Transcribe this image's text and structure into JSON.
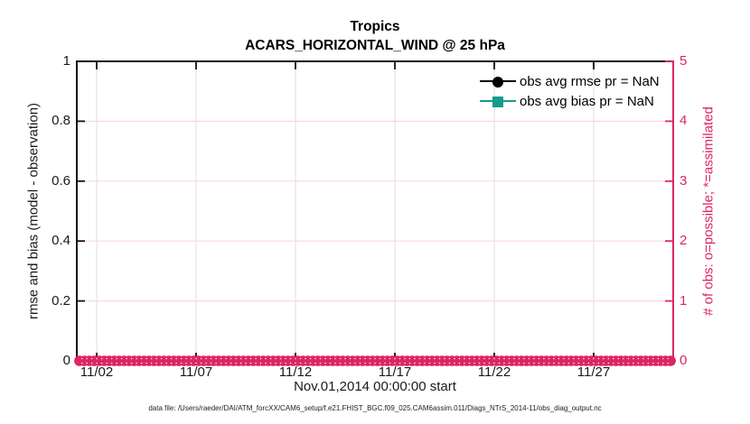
{
  "title": {
    "line1": "Tropics",
    "line2": "ACARS_HORIZONTAL_WIND @ 25 hPa"
  },
  "legend": [
    {
      "label": "obs avg rmse pr = NaN",
      "marker": "circle",
      "color": "#000000"
    },
    {
      "label": "obs avg bias pr = NaN",
      "marker": "square",
      "color": "#159a8c"
    }
  ],
  "axes": {
    "left": {
      "label": "rmse and bias (model - observation)",
      "ticks": [
        0,
        0.2,
        0.4,
        0.6,
        0.8,
        1
      ],
      "range": [
        0,
        1
      ],
      "color": "#1a1a1a"
    },
    "right": {
      "label": "# of obs: o=possible; *=assimilated",
      "ticks": [
        0,
        1,
        2,
        3,
        4,
        5
      ],
      "range": [
        0,
        5
      ],
      "color": "#de2464"
    },
    "x": {
      "label": "Nov.01,2014 00:00:00 start",
      "tick_labels": [
        "11/02",
        "11/07",
        "11/12",
        "11/17",
        "11/22",
        "11/27"
      ],
      "tick_days": [
        1,
        6,
        11,
        16,
        21,
        26
      ],
      "range_days": [
        0,
        30
      ]
    }
  },
  "footer": {
    "data_file": "data file: /Users/raeder/DAI/ATM_forcXX/CAM6_setup/f.e21.FHIST_BGC.f09_025.CAM6assim.011/Diags_NTrS_2014-11/obs_diag_output.nc"
  },
  "chart_data": {
    "type": "line",
    "title": "Tropics",
    "subtitle": "ACARS_HORIZONTAL_WIND @ 25 hPa",
    "xlabel": "Nov.01,2014 00:00:00 start",
    "x_tick_labels": [
      "11/02",
      "11/07",
      "11/12",
      "11/17",
      "11/22",
      "11/27"
    ],
    "x_range": [
      "2014-11-01 00:00",
      "2014-12-01 00:00"
    ],
    "y_left": {
      "label": "rmse and bias (model - observation)",
      "lim": [
        0,
        1
      ],
      "ticks": [
        0,
        0.2,
        0.4,
        0.6,
        0.8,
        1
      ]
    },
    "y_right": {
      "label": "# of obs: o=possible; *=assimilated",
      "lim": [
        0,
        5
      ],
      "ticks": [
        0,
        1,
        2,
        3,
        4,
        5
      ]
    },
    "grid": true,
    "legend_position": "upper right",
    "series": [
      {
        "name": "obs avg rmse pr = NaN",
        "axis": "left",
        "color": "#000000",
        "marker": "circle",
        "values": [],
        "note": "all values NaN, nothing plotted"
      },
      {
        "name": "obs avg bias pr = NaN",
        "axis": "left",
        "color": "#159a8c",
        "marker": "square",
        "values": [],
        "note": "all values NaN, nothing plotted"
      },
      {
        "name": "# of obs possible",
        "axis": "right",
        "color": "#de2464",
        "marker": "o",
        "points": 120,
        "constant_value": 0,
        "note": "dense row of o markers at 0 spanning whole month"
      }
    ],
    "grid_colors": {
      "vertical": "#e2e2e2",
      "horizontal": "#f9d9e4"
    }
  }
}
